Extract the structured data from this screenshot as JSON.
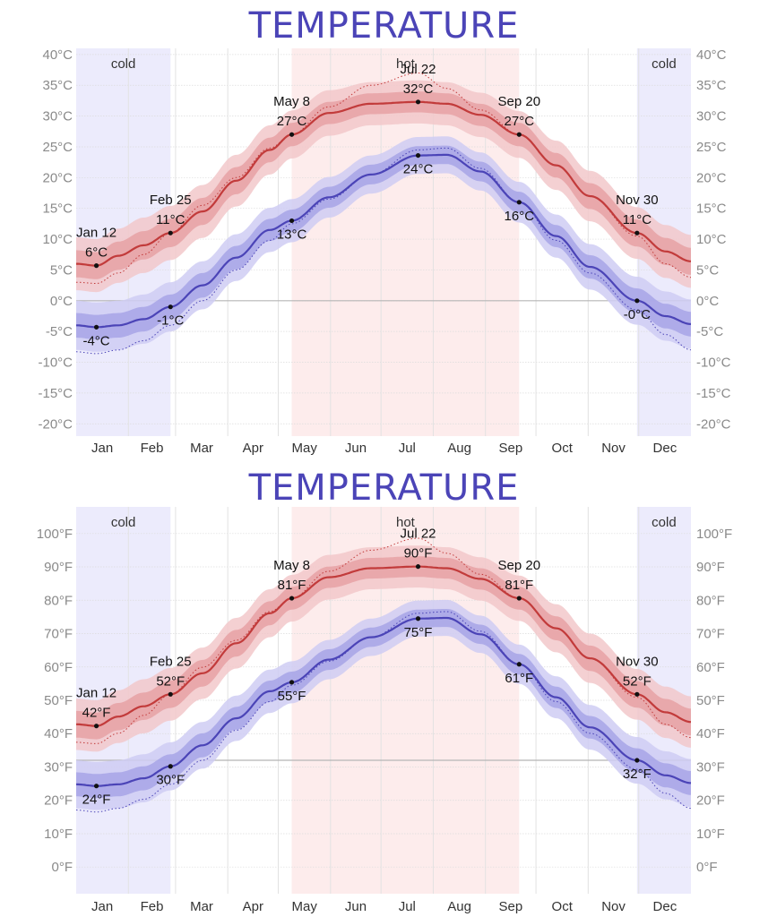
{
  "colors": {
    "title": "#4b44b7",
    "high_line": "#c23b3b",
    "high_band_inner": "#e6a1a4",
    "high_band_outer": "#f2c8ca",
    "low_line": "#4b44b7",
    "low_band_inner": "#a7a4e6",
    "low_band_outer": "#cfcdf3",
    "hot_region": "#fdecec",
    "cold_region": "#ecebfc",
    "grid": "#dcdcdc",
    "axis_text": "#8a8a8a"
  },
  "months": [
    "Jan",
    "Feb",
    "Mar",
    "Apr",
    "May",
    "Jun",
    "Jul",
    "Aug",
    "Sep",
    "Oct",
    "Nov",
    "Dec"
  ],
  "regions": [
    {
      "label": "cold",
      "start_day": 0,
      "end_day": 56,
      "kind": "cold"
    },
    {
      "label": "hot",
      "start_day": 128,
      "end_day": 263,
      "kind": "hot"
    },
    {
      "label": "cold",
      "start_day": 333,
      "end_day": 365,
      "kind": "cold"
    }
  ],
  "chart_data": [
    {
      "type": "line",
      "title": "TEMPERATURE",
      "unit": "°C",
      "x_unit": "day of year",
      "ylim": [
        -22,
        41
      ],
      "yticks": [
        -20,
        -15,
        -10,
        -5,
        0,
        5,
        10,
        15,
        20,
        25,
        30,
        35,
        40
      ],
      "ytick_labels": [
        "-20°C",
        "-15°C",
        "-10°C",
        "-5°C",
        "0°C",
        "5°C",
        "10°C",
        "15°C",
        "20°C",
        "25°C",
        "30°C",
        "35°C",
        "40°C"
      ],
      "freezing": 0,
      "grid": true,
      "series": [
        {
          "role": "high",
          "days": [
            0,
            12,
            25,
            40,
            56,
            75,
            95,
            115,
            128,
            150,
            175,
            203,
            220,
            240,
            263,
            285,
            305,
            333,
            350,
            365
          ],
          "mean": [
            6.0,
            5.7,
            7.3,
            9.0,
            11.0,
            14.5,
            19.5,
            24.5,
            27.0,
            30.5,
            32.0,
            32.3,
            32.0,
            30.2,
            27.0,
            22.0,
            17.0,
            11.0,
            8.0,
            6.4
          ],
          "p25_p75": [
            2.2,
            2.2,
            2.3,
            2.3,
            2.3,
            2.2,
            2.2,
            2.0,
            1.9,
            1.8,
            1.7,
            1.7,
            1.7,
            1.8,
            1.9,
            2.0,
            2.1,
            2.2,
            2.2,
            2.2
          ],
          "p10_p90": [
            4.3,
            4.3,
            4.4,
            4.5,
            4.4,
            4.3,
            4.2,
            4.0,
            3.9,
            3.7,
            3.5,
            3.5,
            3.5,
            3.6,
            3.8,
            4.0,
            4.1,
            4.2,
            4.3,
            4.3
          ],
          "trend": [
            3.0,
            2.8,
            4.5,
            7.5,
            11.0,
            15.5,
            20.0,
            24.8,
            27.0,
            31.5,
            35.0,
            37.0,
            34.5,
            31.0,
            27.0,
            22.0,
            17.0,
            10.5,
            6.0,
            3.8
          ]
        },
        {
          "role": "low",
          "days": [
            0,
            12,
            25,
            40,
            56,
            75,
            95,
            115,
            128,
            150,
            175,
            203,
            220,
            240,
            263,
            285,
            305,
            333,
            350,
            365
          ],
          "mean": [
            -4.0,
            -4.3,
            -4.0,
            -3.0,
            -1.0,
            2.5,
            7.0,
            11.5,
            13.0,
            16.8,
            20.5,
            23.6,
            23.7,
            21.0,
            16.0,
            10.5,
            5.5,
            0.0,
            -2.5,
            -3.8
          ],
          "p25_p75": [
            2.0,
            2.0,
            2.0,
            2.0,
            2.0,
            2.0,
            1.9,
            1.8,
            1.8,
            1.7,
            1.6,
            1.5,
            1.5,
            1.6,
            1.7,
            1.8,
            1.9,
            2.0,
            2.0,
            2.0
          ],
          "p10_p90": [
            4.0,
            4.0,
            4.0,
            4.0,
            4.0,
            3.9,
            3.8,
            3.6,
            3.5,
            3.3,
            3.1,
            3.0,
            3.0,
            3.1,
            3.3,
            3.5,
            3.7,
            3.9,
            4.0,
            4.0
          ],
          "trend": [
            -8.3,
            -8.6,
            -8.0,
            -6.5,
            -4.0,
            0.0,
            5.0,
            9.8,
            12.5,
            16.5,
            20.5,
            24.5,
            24.8,
            21.5,
            16.0,
            9.8,
            4.5,
            -1.5,
            -5.5,
            -8.0
          ]
        }
      ],
      "annotations": [
        {
          "day": 12,
          "value": 5.7,
          "date": "Jan 12",
          "label": "6°C",
          "pos": "above"
        },
        {
          "day": 56,
          "value": 11.0,
          "date": "Feb 25",
          "label": "11°C",
          "pos": "above"
        },
        {
          "day": 128,
          "value": 27.0,
          "date": "May 8",
          "label": "27°C",
          "pos": "above"
        },
        {
          "day": 203,
          "value": 32.3,
          "date": "Jul 22",
          "label": "32°C",
          "pos": "above"
        },
        {
          "day": 263,
          "value": 27.0,
          "date": "Sep 20",
          "label": "27°C",
          "pos": "above"
        },
        {
          "day": 333,
          "value": 11.0,
          "date": "Nov 30",
          "label": "11°C",
          "pos": "above"
        },
        {
          "day": 12,
          "value": -4.3,
          "date": "",
          "label": "-4°C",
          "pos": "below"
        },
        {
          "day": 56,
          "value": -1.0,
          "date": "",
          "label": "-1°C",
          "pos": "below"
        },
        {
          "day": 128,
          "value": 13.0,
          "date": "",
          "label": "13°C",
          "pos": "below"
        },
        {
          "day": 203,
          "value": 23.6,
          "date": "",
          "label": "24°C",
          "pos": "below"
        },
        {
          "day": 263,
          "value": 16.0,
          "date": "",
          "label": "16°C",
          "pos": "below"
        },
        {
          "day": 333,
          "value": 0.0,
          "date": "",
          "label": "-0°C",
          "pos": "below"
        }
      ]
    },
    {
      "type": "line",
      "title": "TEMPERATURE",
      "unit": "°F",
      "x_unit": "day of year",
      "ylim": [
        -8,
        108
      ],
      "yticks": [
        0,
        10,
        20,
        30,
        40,
        50,
        60,
        70,
        80,
        90,
        100
      ],
      "ytick_labels": [
        "0°F",
        "10°F",
        "20°F",
        "30°F",
        "40°F",
        "50°F",
        "60°F",
        "70°F",
        "80°F",
        "90°F",
        "100°F"
      ],
      "freezing": 32,
      "grid": true,
      "series": [
        {
          "role": "high",
          "days": [
            0,
            12,
            25,
            40,
            56,
            75,
            95,
            115,
            128,
            150,
            175,
            203,
            220,
            240,
            263,
            285,
            305,
            333,
            350,
            365
          ],
          "mean": [
            42.8,
            42.3,
            45.1,
            48.2,
            51.8,
            58.1,
            67.1,
            76.1,
            80.6,
            86.9,
            89.6,
            90.1,
            89.6,
            86.4,
            80.6,
            71.6,
            62.6,
            51.8,
            46.4,
            43.5
          ],
          "p25_p75": [
            4.0,
            4.0,
            4.1,
            4.1,
            4.1,
            4.0,
            4.0,
            3.6,
            3.4,
            3.2,
            3.1,
            3.1,
            3.1,
            3.2,
            3.4,
            3.6,
            3.8,
            4.0,
            4.0,
            4.0
          ],
          "p10_p90": [
            7.7,
            7.7,
            7.9,
            8.1,
            7.9,
            7.7,
            7.6,
            7.2,
            7.0,
            6.7,
            6.3,
            6.3,
            6.3,
            6.5,
            6.8,
            7.2,
            7.4,
            7.6,
            7.7,
            7.7
          ],
          "trend": [
            37.4,
            37.0,
            40.1,
            45.5,
            51.8,
            59.9,
            68.0,
            76.6,
            80.6,
            88.7,
            95.0,
            98.6,
            94.1,
            87.8,
            80.6,
            71.6,
            62.6,
            50.9,
            42.8,
            38.8
          ]
        },
        {
          "role": "low",
          "days": [
            0,
            12,
            25,
            40,
            56,
            75,
            95,
            115,
            128,
            150,
            175,
            203,
            220,
            240,
            263,
            285,
            305,
            333,
            350,
            365
          ],
          "mean": [
            24.8,
            24.3,
            24.8,
            26.6,
            30.2,
            36.5,
            44.6,
            52.7,
            55.4,
            62.2,
            68.9,
            74.5,
            74.7,
            69.8,
            60.8,
            50.9,
            41.9,
            32.0,
            27.5,
            25.2
          ],
          "p25_p75": [
            3.6,
            3.6,
            3.6,
            3.6,
            3.6,
            3.6,
            3.4,
            3.2,
            3.2,
            3.1,
            2.9,
            2.7,
            2.7,
            2.9,
            3.1,
            3.2,
            3.4,
            3.6,
            3.6,
            3.6
          ],
          "p10_p90": [
            7.2,
            7.2,
            7.2,
            7.2,
            7.2,
            7.0,
            6.8,
            6.5,
            6.3,
            5.9,
            5.6,
            5.4,
            5.4,
            5.6,
            5.9,
            6.3,
            6.7,
            7.0,
            7.2,
            7.2
          ],
          "trend": [
            17.1,
            16.5,
            17.6,
            20.3,
            24.8,
            32.0,
            41.0,
            49.6,
            54.5,
            61.7,
            68.9,
            76.1,
            76.6,
            70.7,
            60.8,
            49.6,
            40.1,
            29.3,
            22.1,
            17.6
          ]
        }
      ],
      "annotations": [
        {
          "day": 12,
          "value": 42.3,
          "date": "Jan 12",
          "label": "42°F",
          "pos": "above"
        },
        {
          "day": 56,
          "value": 51.8,
          "date": "Feb 25",
          "label": "52°F",
          "pos": "above"
        },
        {
          "day": 128,
          "value": 80.6,
          "date": "May 8",
          "label": "81°F",
          "pos": "above"
        },
        {
          "day": 203,
          "value": 90.1,
          "date": "Jul 22",
          "label": "90°F",
          "pos": "above"
        },
        {
          "day": 263,
          "value": 80.6,
          "date": "Sep 20",
          "label": "81°F",
          "pos": "above"
        },
        {
          "day": 333,
          "value": 51.8,
          "date": "Nov 30",
          "label": "52°F",
          "pos": "above"
        },
        {
          "day": 12,
          "value": 24.3,
          "date": "",
          "label": "24°F",
          "pos": "below"
        },
        {
          "day": 56,
          "value": 30.2,
          "date": "",
          "label": "30°F",
          "pos": "below"
        },
        {
          "day": 128,
          "value": 55.4,
          "date": "",
          "label": "55°F",
          "pos": "below"
        },
        {
          "day": 203,
          "value": 74.5,
          "date": "",
          "label": "75°F",
          "pos": "below"
        },
        {
          "day": 263,
          "value": 60.8,
          "date": "",
          "label": "61°F",
          "pos": "below"
        },
        {
          "day": 333,
          "value": 32.0,
          "date": "",
          "label": "32°F",
          "pos": "below"
        }
      ]
    }
  ]
}
